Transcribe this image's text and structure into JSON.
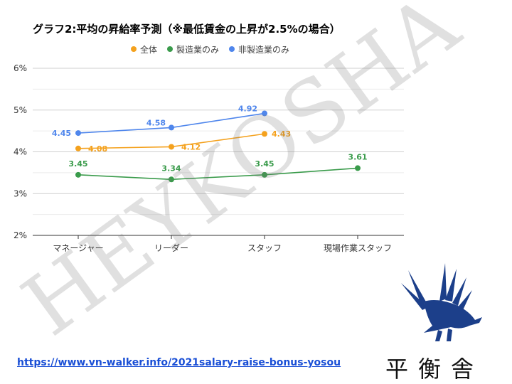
{
  "page": {
    "url": "https://www.vn-walker.info/2021salary-raise-bonus-yosou",
    "logo_text": "平衡舎",
    "watermark": "HEYKOSHA"
  },
  "chart_data": {
    "type": "line",
    "title": "グラフ2:平均の昇給率予測（※最低賃金の上昇が2.5%の場合）",
    "categories": [
      "マネージャー",
      "リーダー",
      "スタッフ",
      "現場作業スタッフ"
    ],
    "ylim": [
      2,
      6
    ],
    "yticks": [
      "2%",
      "3%",
      "4%",
      "5%",
      "6%"
    ],
    "grid": true,
    "legend_position": "top",
    "series": [
      {
        "name": "全体",
        "color": "#f4a11d",
        "values": [
          4.08,
          4.12,
          4.43,
          null
        ],
        "labels": [
          "4.08",
          "4.12",
          "4.43",
          ""
        ]
      },
      {
        "name": "製造業のみ",
        "color": "#3a9b4b",
        "values": [
          3.45,
          3.34,
          3.45,
          3.61
        ],
        "labels": [
          "3.45",
          "3.34",
          "3.45",
          "3.61"
        ]
      },
      {
        "name": "非製造業のみ",
        "color": "#4f86ec",
        "values": [
          4.45,
          4.58,
          4.92,
          null
        ],
        "labels": [
          "4.45",
          "4.58",
          "4.92",
          ""
        ]
      }
    ]
  }
}
